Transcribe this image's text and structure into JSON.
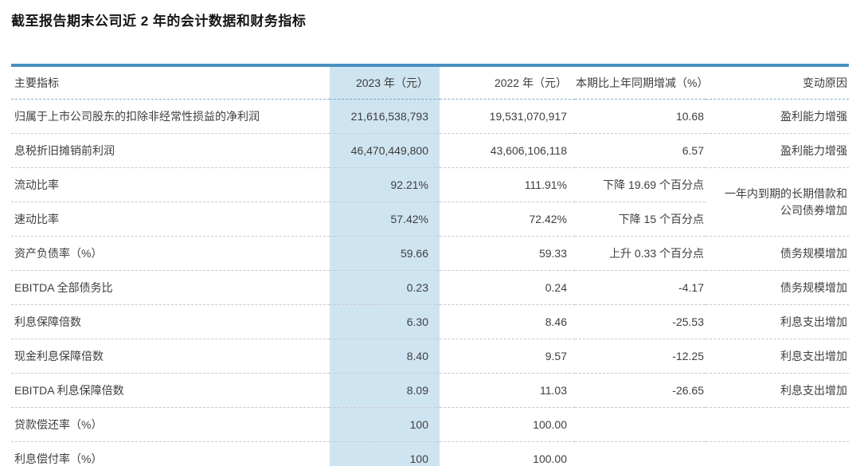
{
  "page_title": "截至报告期末公司近 2 年的会计数据和财务指标",
  "colors": {
    "table_top_border": "#4a8fc0",
    "table_bottom_border": "#7fb0d4",
    "header_divider": "#7cb1d8",
    "row_divider": "#c9c9c9",
    "highlight_column_bg": "#cfe4f1",
    "text": "#3e3e3e"
  },
  "chart_data": {
    "type": "table",
    "title": "截至报告期末公司近 2 年的会计数据和财务指标",
    "columns": [
      "主要指标",
      "2023 年（元）",
      "2022 年（元）",
      "本期比上年同期增减（%）",
      "变动原因"
    ],
    "rows": [
      {
        "indicator": "归属于上市公司股东的扣除非经常性损益的净利润",
        "y2023": "21,616,538,793",
        "y2022": "19,531,070,917",
        "change": "10.68",
        "reason": "盈利能力增强"
      },
      {
        "indicator": "息税折旧摊销前利润",
        "y2023": "46,470,449,800",
        "y2022": "43,606,106,118",
        "change": "6.57",
        "reason": "盈利能力增强"
      },
      {
        "indicator": "流动比率",
        "y2023": "92.21%",
        "y2022": "111.91%",
        "change": "下降 19.69 个百分点",
        "reason": "一年内到期的长期借款和公司债券增加",
        "reason_rowspan": 2
      },
      {
        "indicator": "速动比率",
        "y2023": "57.42%",
        "y2022": "72.42%",
        "change": "下降 15 个百分点",
        "reason": null
      },
      {
        "indicator": "资产负债率（%）",
        "y2023": "59.66",
        "y2022": "59.33",
        "change": "上升 0.33 个百分点",
        "reason": "债务规模增加"
      },
      {
        "indicator": "EBITDA 全部债务比",
        "y2023": "0.23",
        "y2022": "0.24",
        "change": "-4.17",
        "reason": "债务规模增加"
      },
      {
        "indicator": "利息保障倍数",
        "y2023": "6.30",
        "y2022": "8.46",
        "change": "-25.53",
        "reason": "利息支出增加"
      },
      {
        "indicator": "现金利息保障倍数",
        "y2023": "8.40",
        "y2022": "9.57",
        "change": "-12.25",
        "reason": "利息支出增加"
      },
      {
        "indicator": "EBITDA 利息保障倍数",
        "y2023": "8.09",
        "y2022": "11.03",
        "change": "-26.65",
        "reason": "利息支出增加"
      },
      {
        "indicator": "贷款偿还率（%）",
        "y2023": "100",
        "y2022": "100.00",
        "change": "",
        "reason": ""
      },
      {
        "indicator": "利息偿付率（%）",
        "y2023": "100",
        "y2022": "100.00",
        "change": "",
        "reason": ""
      }
    ]
  }
}
